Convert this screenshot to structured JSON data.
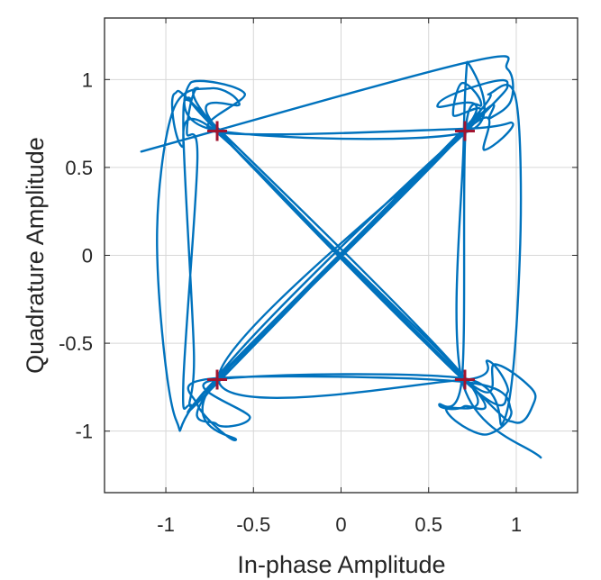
{
  "chart_data": {
    "type": "scatter",
    "subtype": "constellation-trajectory",
    "title": "",
    "xlabel": "In-phase Amplitude",
    "ylabel": "Quadrature Amplitude",
    "xlim": [
      -1.35,
      1.35
    ],
    "ylim": [
      -1.35,
      1.35
    ],
    "xticks": [
      -1,
      -0.5,
      0,
      0.5,
      1
    ],
    "yticks": [
      -1,
      -0.5,
      0,
      0.5,
      1
    ],
    "xtick_labels": [
      "-1",
      "-0.5",
      "0",
      "0.5",
      "1"
    ],
    "ytick_labels": [
      "-1",
      "-0.5",
      "0",
      "0.5",
      "1"
    ],
    "grid": true,
    "series": [
      {
        "kind": "trajectory",
        "color": "#0072BD",
        "points": [
          [
            -1.14,
            0.59
          ],
          [
            0.73,
            1.1
          ],
          [
            0.95,
            1.06
          ],
          [
            0.97,
            0.88
          ],
          [
            0.85,
            0.78
          ],
          [
            0.73,
            0.74
          ],
          [
            -0.7,
            -0.72
          ],
          [
            -0.86,
            -0.85
          ],
          [
            -0.9,
            -0.72
          ],
          [
            -0.82,
            0.55
          ],
          [
            -0.88,
            0.7
          ],
          [
            -0.82,
            0.95
          ],
          [
            -0.7,
            0.71
          ],
          [
            0.7,
            -0.7
          ],
          [
            0.88,
            -0.62
          ],
          [
            1.08,
            -0.75
          ],
          [
            1.1,
            -0.84
          ],
          [
            0.99,
            -0.95
          ],
          [
            0.71,
            -0.71
          ],
          [
            -0.71,
            0.71
          ],
          [
            -0.86,
            0.88
          ],
          [
            -0.9,
            0.7
          ],
          [
            -0.84,
            -0.55
          ],
          [
            -0.86,
            -0.86
          ],
          [
            -0.71,
            -0.71
          ],
          [
            0.71,
            0.71
          ],
          [
            0.64,
            0.8
          ],
          [
            0.69,
            0.98
          ],
          [
            0.8,
            0.86
          ],
          [
            0.71,
            0.7
          ],
          [
            0.69,
            -0.7
          ],
          [
            0.56,
            -0.85
          ],
          [
            0.7,
            -0.86
          ],
          [
            0.72,
            -0.71
          ],
          [
            -0.7,
            0.71
          ],
          [
            -0.58,
            0.86
          ],
          [
            -0.74,
            0.95
          ],
          [
            -0.96,
            0.82
          ],
          [
            -1.05,
            0.05
          ],
          [
            -0.94,
            -0.94
          ],
          [
            -0.72,
            -0.71
          ],
          [
            0.7,
            0.72
          ],
          [
            0.85,
            0.92
          ],
          [
            1.0,
            0.88
          ],
          [
            1.02,
            -0.02
          ],
          [
            0.93,
            -0.94
          ],
          [
            0.7,
            -0.7
          ],
          [
            -0.73,
            -0.71
          ],
          [
            -0.52,
            -0.92
          ],
          [
            -0.71,
            -0.96
          ],
          [
            -0.71,
            -0.72
          ],
          [
            0.71,
            0.72
          ],
          [
            0.55,
            0.85
          ],
          [
            0.73,
            0.95
          ],
          [
            0.95,
            0.98
          ],
          [
            0.71,
            0.7
          ],
          [
            -0.7,
            -0.7
          ],
          [
            0.68,
            -0.71
          ],
          [
            0.84,
            -0.6
          ],
          [
            0.95,
            -0.78
          ],
          [
            0.71,
            -0.72
          ],
          [
            -0.71,
            0.7
          ],
          [
            -0.91,
            0.62
          ],
          [
            -0.95,
            0.92
          ],
          [
            -0.7,
            0.72
          ],
          [
            0.71,
            -0.7
          ],
          [
            0.6,
            -0.88
          ],
          [
            0.82,
            -1.02
          ],
          [
            0.97,
            -0.88
          ],
          [
            0.7,
            -0.72
          ],
          [
            -0.72,
            -0.7
          ],
          [
            -0.82,
            -0.85
          ],
          [
            -0.6,
            -1.05
          ],
          [
            -0.72,
            -0.71
          ],
          [
            0.71,
            0.71
          ],
          [
            0.82,
            0.6
          ],
          [
            0.98,
            0.75
          ],
          [
            0.7,
            0.72
          ],
          [
            -0.7,
            0.7
          ],
          [
            -0.55,
            0.92
          ],
          [
            -0.86,
            0.98
          ],
          [
            -0.71,
            0.71
          ],
          [
            0.71,
            0.7
          ],
          [
            0.72,
            1.1
          ],
          [
            0.7,
            0.65
          ],
          [
            0.69,
            -0.71
          ],
          [
            1.14,
            -1.15
          ]
        ]
      },
      {
        "kind": "ideal-constellation",
        "marker": "+",
        "color": "#A2142F",
        "points": [
          [
            -0.707,
            0.707
          ],
          [
            0.707,
            0.707
          ],
          [
            -0.707,
            -0.707
          ],
          [
            0.707,
            -0.707
          ]
        ]
      }
    ]
  }
}
